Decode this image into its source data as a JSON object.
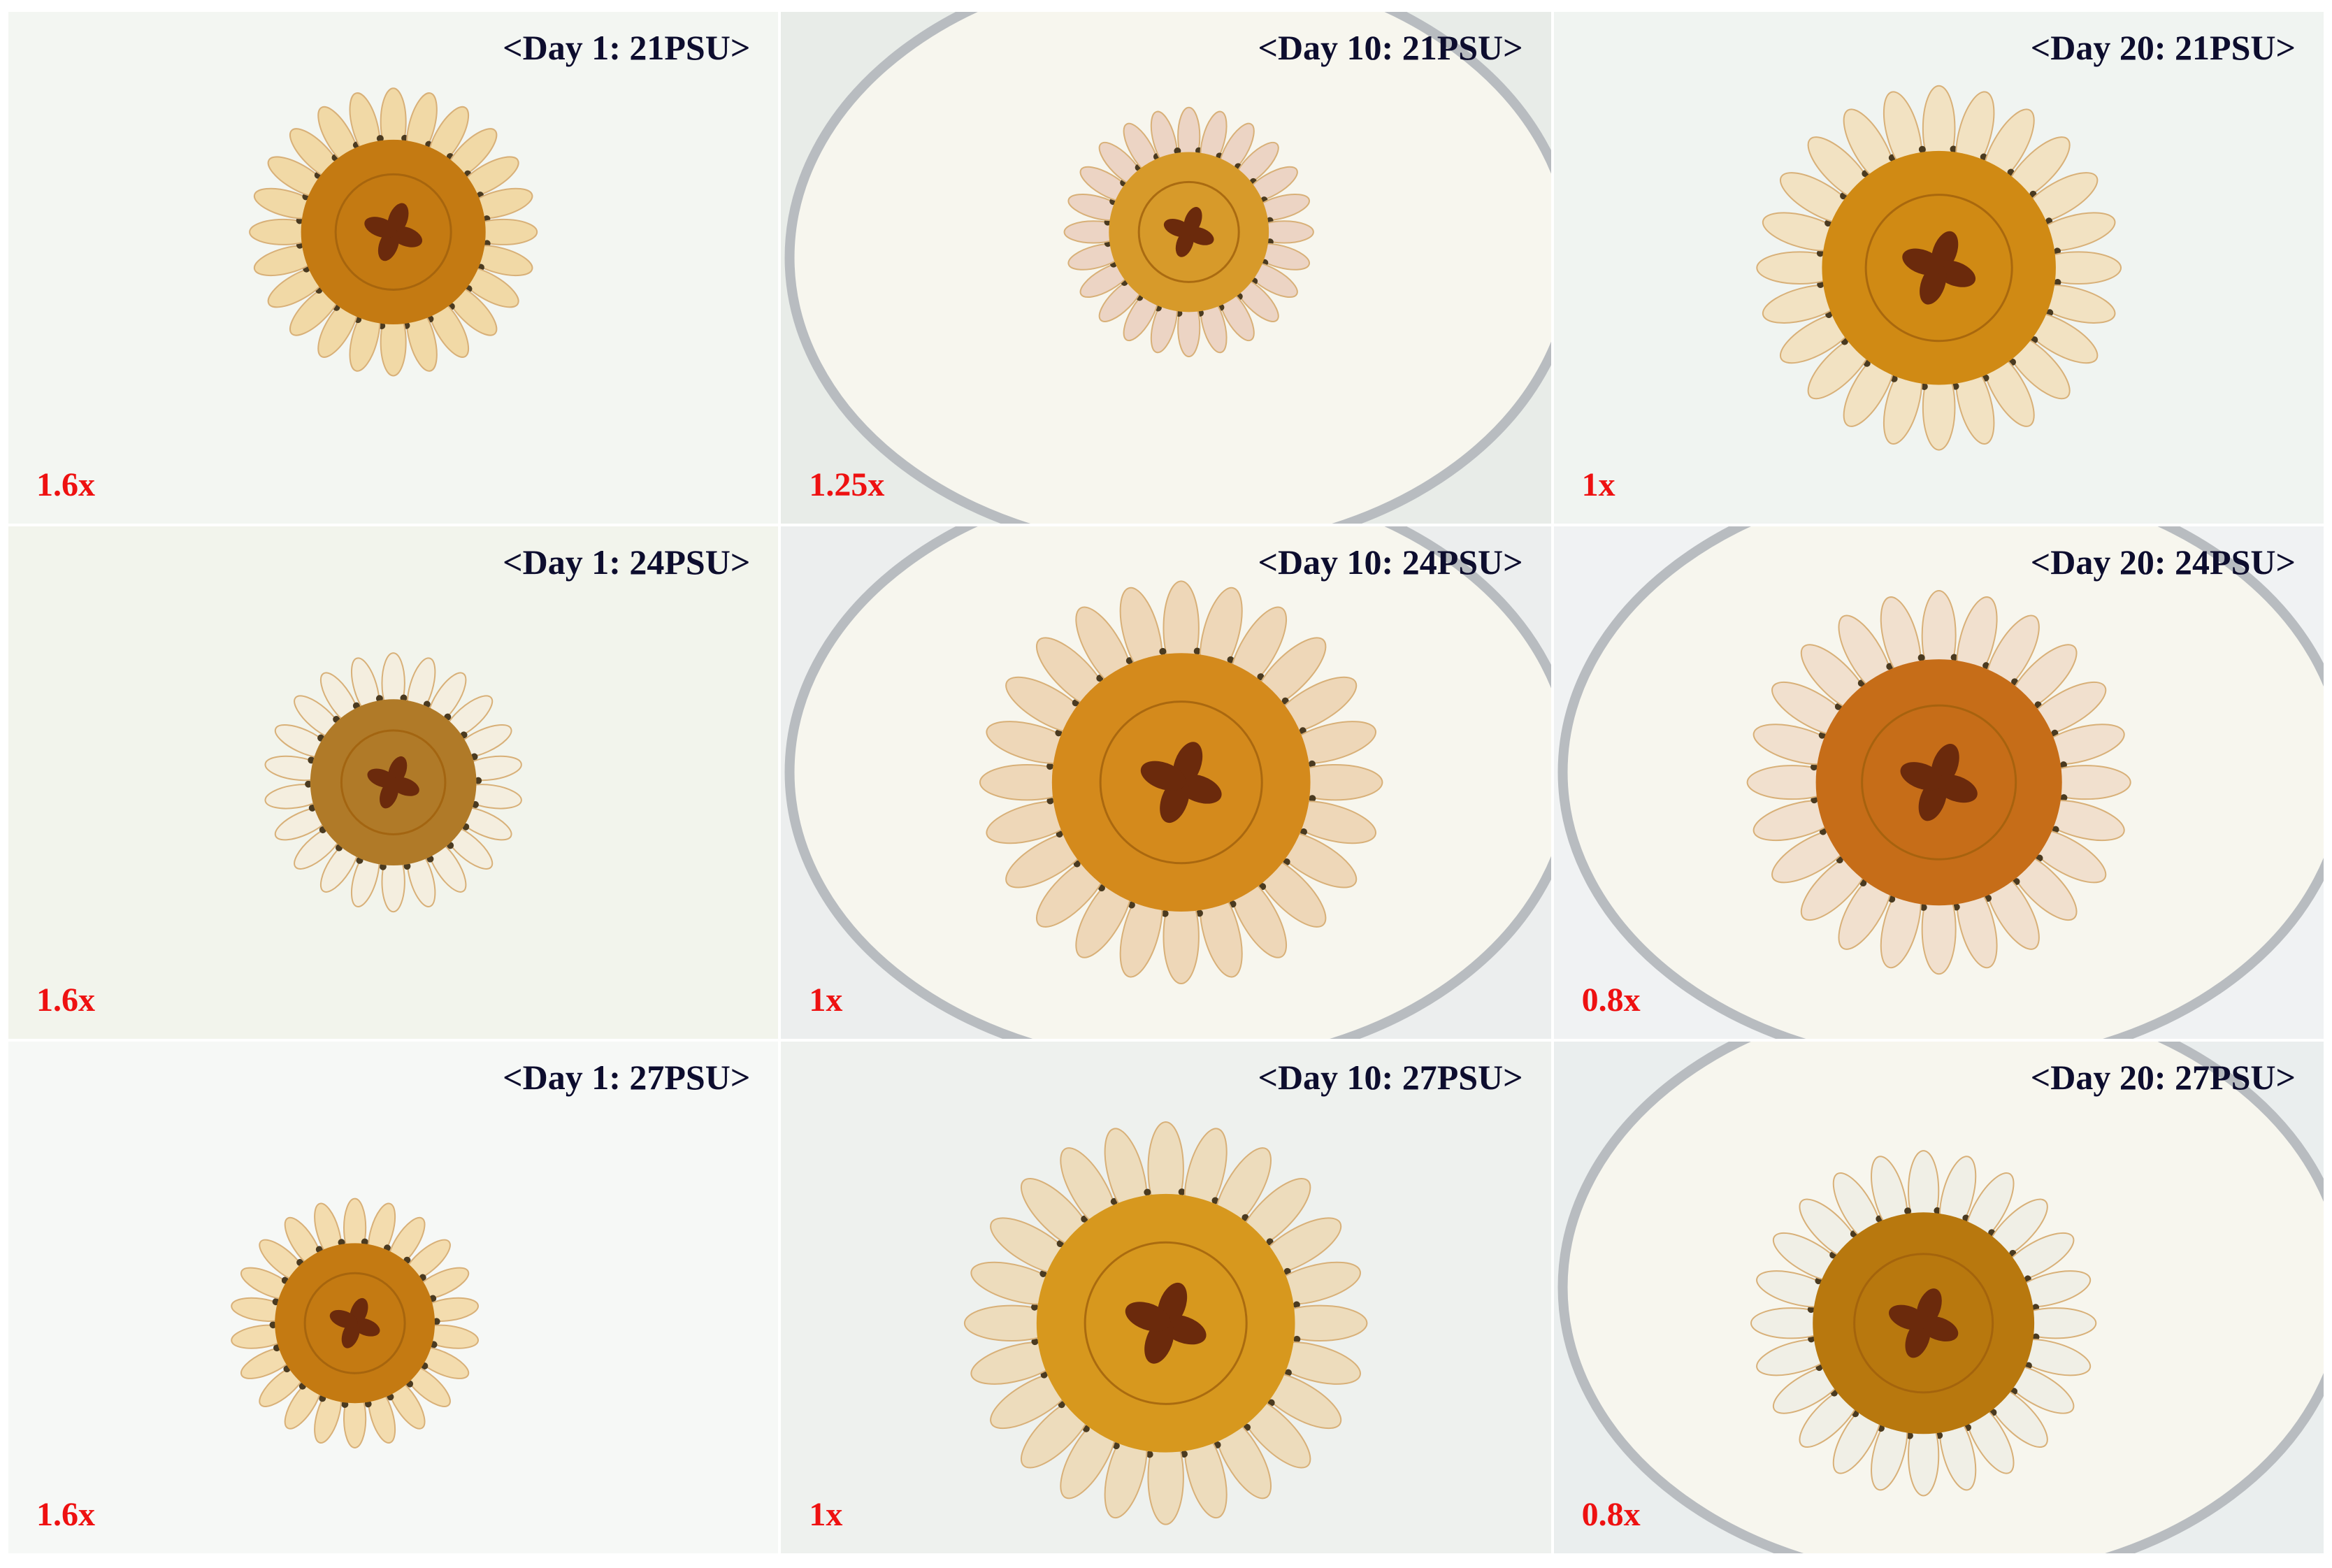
{
  "panels": [
    {
      "label": "<Day 1: 21PSU>",
      "magnification": "1.6x"
    },
    {
      "label": "<Day 10: 21PSU>",
      "magnification": "1.25x"
    },
    {
      "label": "<Day 20: 21PSU>",
      "magnification": "1x"
    },
    {
      "label": "<Day 1: 24PSU>",
      "magnification": "1.6x"
    },
    {
      "label": "<Day 10: 24PSU>",
      "magnification": "1x"
    },
    {
      "label": "<Day 20: 24PSU>",
      "magnification": "0.8x"
    },
    {
      "label": "<Day 1: 27PSU>",
      "magnification": "1.6x"
    },
    {
      "label": "<Day 10: 27PSU>",
      "magnification": "1x"
    },
    {
      "label": "<Day 20: 27PSU>",
      "magnification": "0.8x"
    }
  ]
}
